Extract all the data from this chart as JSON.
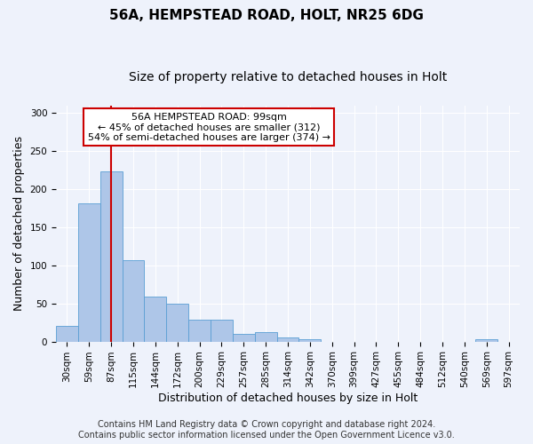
{
  "title": "56A, HEMPSTEAD ROAD, HOLT, NR25 6DG",
  "subtitle": "Size of property relative to detached houses in Holt",
  "xlabel": "Distribution of detached houses by size in Holt",
  "ylabel": "Number of detached properties",
  "bar_color": "#aec6e8",
  "bar_edge_color": "#5a9fd4",
  "background_color": "#eef2fb",
  "grid_color": "#ffffff",
  "bin_labels": [
    "30sqm",
    "59sqm",
    "87sqm",
    "115sqm",
    "144sqm",
    "172sqm",
    "200sqm",
    "229sqm",
    "257sqm",
    "285sqm",
    "314sqm",
    "342sqm",
    "370sqm",
    "399sqm",
    "427sqm",
    "455sqm",
    "484sqm",
    "512sqm",
    "540sqm",
    "569sqm",
    "597sqm"
  ],
  "bar_heights": [
    20,
    182,
    224,
    107,
    59,
    50,
    29,
    29,
    10,
    12,
    5,
    3,
    0,
    0,
    0,
    0,
    0,
    0,
    0,
    3,
    0
  ],
  "property_bin_index": 2,
  "vline_color": "#cc0000",
  "annotation_text": "56A HEMPSTEAD ROAD: 99sqm\n← 45% of detached houses are smaller (312)\n54% of semi-detached houses are larger (374) →",
  "annotation_box_color": "#ffffff",
  "annotation_box_edge_color": "#cc0000",
  "ylim": [
    0,
    310
  ],
  "yticks": [
    0,
    50,
    100,
    150,
    200,
    250,
    300
  ],
  "footer_text": "Contains HM Land Registry data © Crown copyright and database right 2024.\nContains public sector information licensed under the Open Government Licence v3.0.",
  "title_fontsize": 11,
  "subtitle_fontsize": 10,
  "xlabel_fontsize": 9,
  "ylabel_fontsize": 9,
  "tick_fontsize": 7.5,
  "annotation_fontsize": 8,
  "footer_fontsize": 7
}
